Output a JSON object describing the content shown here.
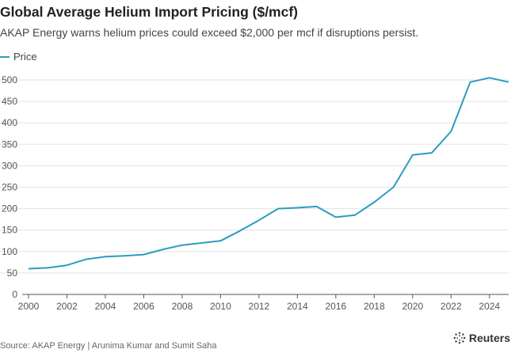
{
  "header": {
    "title": "Global Average Helium Import Pricing ($/mcf)",
    "subtitle": "AKAP Energy warns helium prices could exceed $2,000 per mcf if disruptions persist."
  },
  "footer": {
    "source": "Source: AKAP Energy | Arunima Kumar and Sumit Saha",
    "logo_text": "Reuters",
    "logo_icon": "reuters-dot-ring-icon"
  },
  "colors": {
    "line": "#2b9cc0",
    "grid": "#e3e3e3",
    "axis": "#555555"
  },
  "chart_data": {
    "type": "line",
    "title": "Global Average Helium Import Pricing ($/mcf)",
    "subtitle": "AKAP Energy warns helium prices could exceed $2,000 per mcf if disruptions persist.",
    "xlabel": "",
    "ylabel": "",
    "xlim": [
      2000,
      2025
    ],
    "ylim": [
      0,
      500
    ],
    "x_ticks": [
      "2000",
      "2002",
      "2004",
      "2006",
      "2008",
      "2010",
      "2012",
      "2014",
      "2016",
      "2018",
      "2020",
      "2022",
      "2024"
    ],
    "y_ticks": [
      "0",
      "50",
      "100",
      "150",
      "200",
      "250",
      "300",
      "350",
      "400",
      "450",
      "500"
    ],
    "grid": "horizontal",
    "legend_position": "top-left",
    "series": [
      {
        "name": "Price",
        "x": [
          2000,
          2001,
          2002,
          2003,
          2004,
          2005,
          2006,
          2007,
          2008,
          2009,
          2010,
          2011,
          2012,
          2013,
          2014,
          2015,
          2016,
          2017,
          2018,
          2019,
          2020,
          2021,
          2022,
          2023,
          2024,
          2025
        ],
        "values": [
          60,
          62,
          68,
          82,
          88,
          90,
          93,
          105,
          115,
          120,
          125,
          148,
          173,
          200,
          202,
          205,
          180,
          185,
          215,
          250,
          325,
          330,
          380,
          495,
          505,
          495
        ]
      }
    ]
  }
}
